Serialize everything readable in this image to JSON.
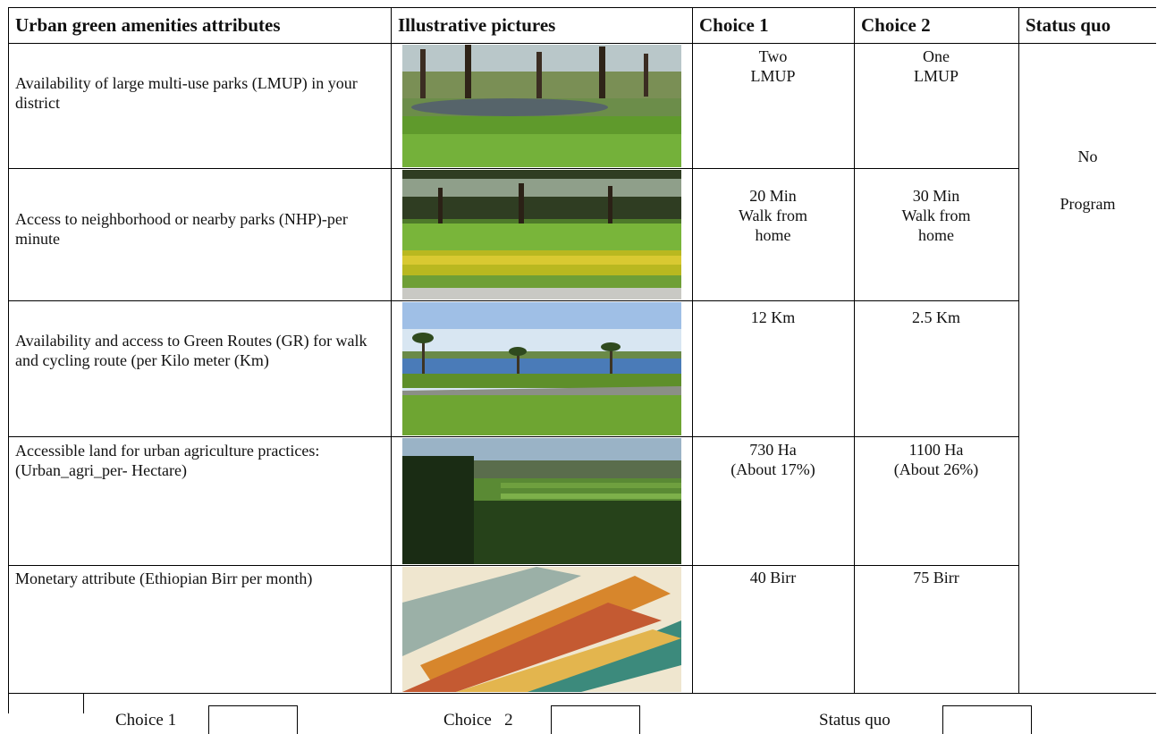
{
  "headers": {
    "attribute": "Urban green amenities attributes",
    "pictures": "Illustrative pictures",
    "choice1": "Choice 1",
    "choice2": "Choice 2",
    "status_quo": "Status quo"
  },
  "rows": [
    {
      "attribute": "Availability of large multi-use parks (LMUP) in your district",
      "choice1": "Two\nLMUP",
      "choice2": "One\nLMUP",
      "picture": "park-pond-photo"
    },
    {
      "attribute": "Access to neighborhood or nearby parks (NHP)-per minute",
      "choice1": "20 Min\nWalk from\nhome",
      "choice2": "30 Min\nWalk from\nhome",
      "picture": "neighborhood-park-photo"
    },
    {
      "attribute": "Availability and access to Green Routes (GR) for walk and cycling route (per Kilo meter (Km)",
      "choice1": "12 Km",
      "choice2": "2.5 Km",
      "picture": "green-route-photo"
    },
    {
      "attribute": "Accessible land for urban agriculture practices: (Urban_agri_per- Hectare)",
      "choice1": "730 Ha\n(About 17%)",
      "choice2": "1100 Ha\n(About 26%)",
      "picture": "urban-agriculture-photo"
    },
    {
      "attribute": "Monetary attribute (Ethiopian Birr per month)",
      "choice1": "40 Birr",
      "choice2": "75 Birr",
      "picture": "birr-banknotes-photo"
    }
  ],
  "status_quo": {
    "line1": "No",
    "line2": "Program"
  },
  "footer": {
    "choice1_label": "Choice 1",
    "choice2_label": "Choice   2",
    "status_quo_label": "Status quo"
  }
}
